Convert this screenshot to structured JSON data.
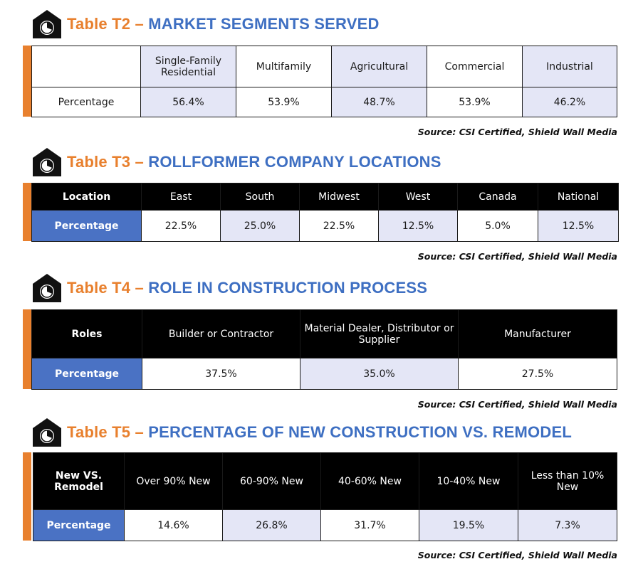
{
  "tables": [
    {
      "number": "Table T2",
      "dash": "–",
      "name": "MARKET SEGMENTS SERVED",
      "header_corner": "",
      "columns": [
        "Single-Family Residential",
        "Multifamily",
        "Agricultural",
        "Commercial",
        "Industrial"
      ],
      "row_label": "Percentage",
      "values": [
        "56.4%",
        "53.9%",
        "48.7%",
        "53.9%",
        "46.2%"
      ],
      "source": "Source: CSI Certified, Shield Wall Media"
    },
    {
      "number": "Table T3",
      "dash": "–",
      "name": "ROLLFORMER COMPANY LOCATIONS",
      "header_corner": "Location",
      "columns": [
        "East",
        "South",
        "Midwest",
        "West",
        "Canada",
        "National"
      ],
      "row_label": "Percentage",
      "values": [
        "22.5%",
        "25.0%",
        "22.5%",
        "12.5%",
        "5.0%",
        "12.5%"
      ],
      "source": "Source: CSI Certified, Shield Wall Media"
    },
    {
      "number": "Table T4",
      "dash": "–",
      "name": "ROLE IN CONSTRUCTION PROCESS",
      "header_corner": "Roles",
      "columns": [
        "Builder or Contractor",
        "Material Dealer, Distributor or Supplier",
        "Manufacturer"
      ],
      "row_label": "Percentage",
      "values": [
        "37.5%",
        "35.0%",
        "27.5%"
      ],
      "source": "Source: CSI Certified, Shield Wall Media"
    },
    {
      "number": "Table T5",
      "dash": "–",
      "name": "PERCENTAGE OF NEW CONSTRUCTION VS. REMODEL",
      "header_corner": "New VS. Remodel",
      "columns": [
        "Over 90% New",
        "60-90% New",
        "40-60% New",
        "10-40% New",
        "Less than 10% New"
      ],
      "row_label": "Percentage",
      "values": [
        "14.6%",
        "26.8%",
        "31.7%",
        "19.5%",
        "7.3%"
      ],
      "source": "Source: CSI Certified, Shield Wall Media"
    }
  ],
  "colors": {
    "orange": "#e8802e",
    "blue_title": "#3e6fc2",
    "blue_cell": "#4a72c4",
    "lavender": "#e4e6f6"
  },
  "icons": [
    "house-chart-icon"
  ]
}
